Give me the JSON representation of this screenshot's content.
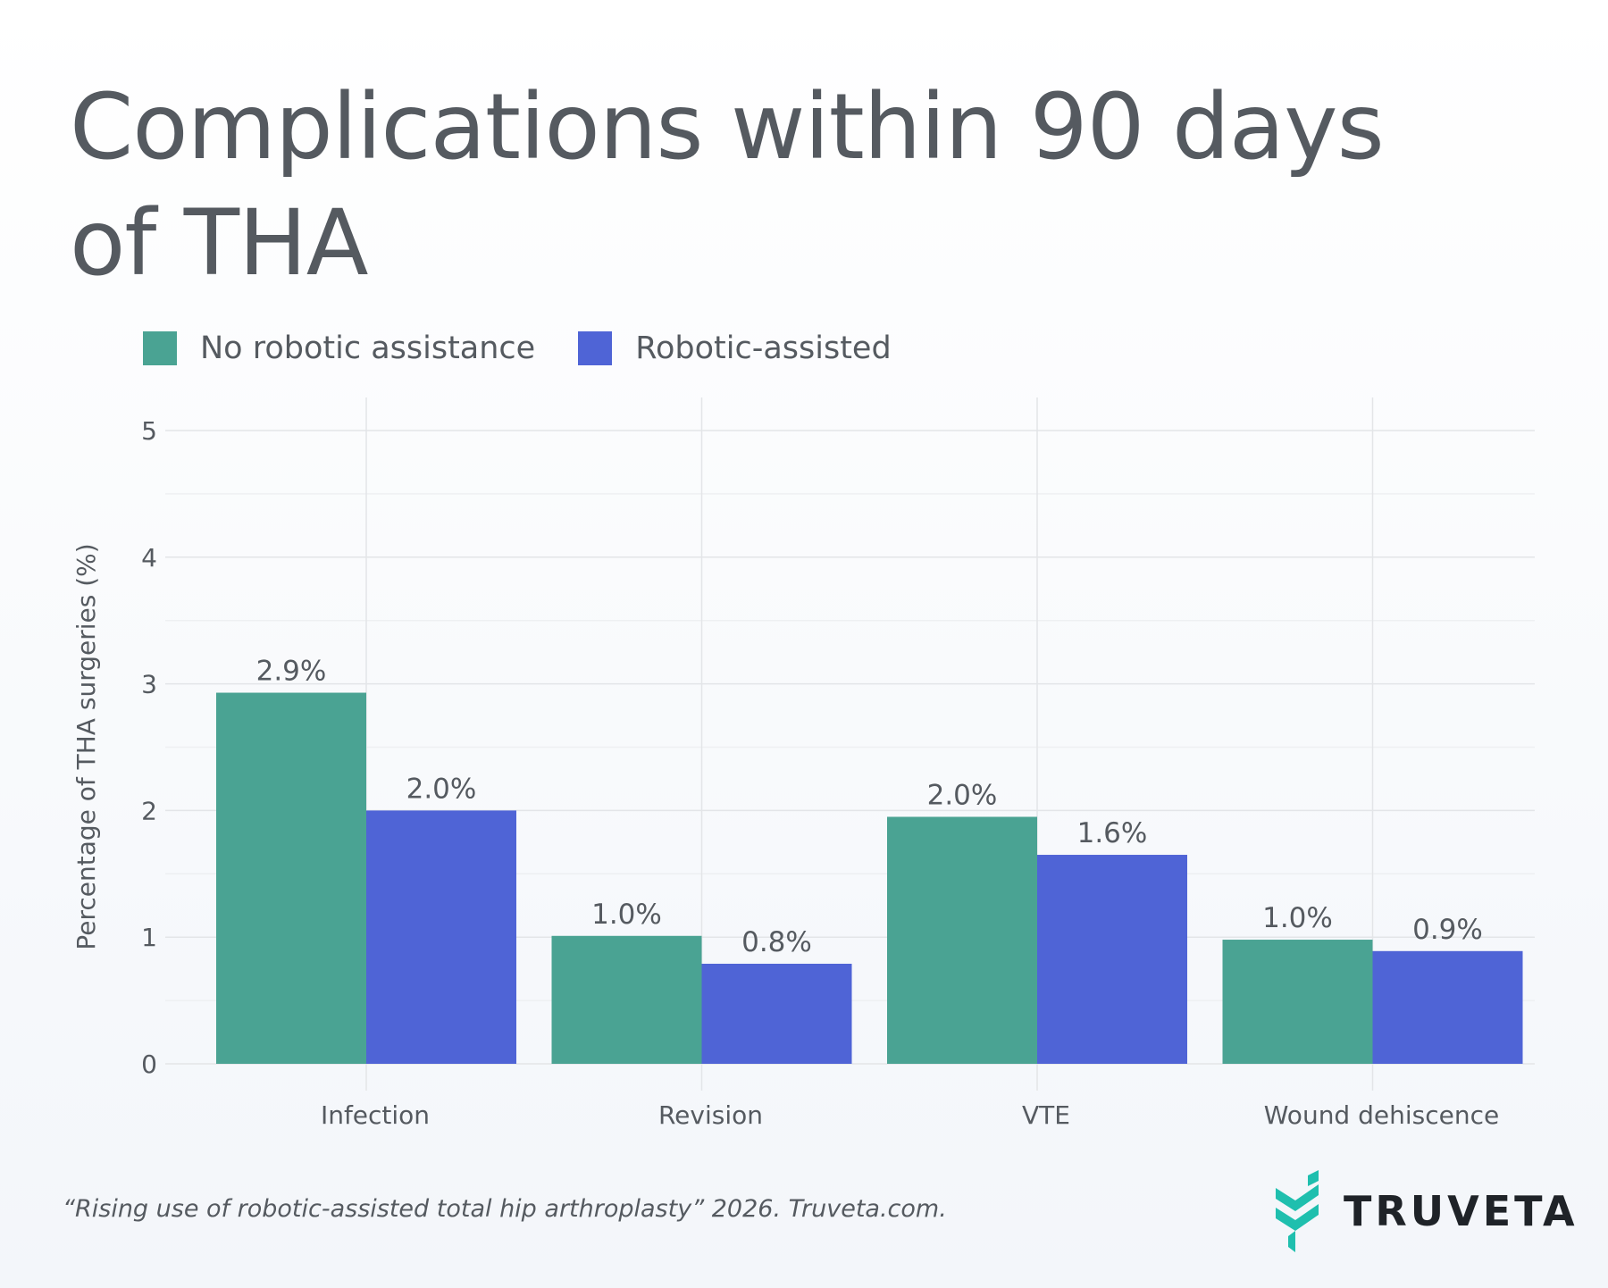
{
  "title": "Complications within 90 days of THA",
  "legend": [
    {
      "label": "No robotic assistance",
      "color": "#4aa393"
    },
    {
      "label": "Robotic-assisted",
      "color": "#4f64d6"
    }
  ],
  "chart_data": {
    "type": "bar",
    "categories": [
      "Infection",
      "Revision",
      "VTE",
      "Wound dehiscence"
    ],
    "series": [
      {
        "name": "No robotic assistance",
        "values": [
          2.93,
          1.01,
          1.95,
          0.98
        ],
        "labels": [
          "2.9%",
          "1.0%",
          "2.0%",
          "1.0%"
        ],
        "color": "#4aa393"
      },
      {
        "name": "Robotic-assisted",
        "values": [
          2.0,
          0.79,
          1.65,
          0.89
        ],
        "labels": [
          "2.0%",
          "0.8%",
          "1.6%",
          "0.9%"
        ],
        "color": "#4f64d6"
      }
    ],
    "ylabel": "Percentage of THA surgeries (%)",
    "xlabel": "",
    "ylim": [
      0,
      5
    ],
    "yticks": [
      "0",
      "1",
      "2",
      "3",
      "4",
      "5"
    ],
    "grid": true,
    "legend_position": "top-left"
  },
  "footer": {
    "citation": "“Rising use of robotic-assisted total hip arthroplasty” 2026. Truveta.com."
  },
  "logo": {
    "text": "TRUVETA",
    "icon": "truveta-chevrons-icon",
    "color": "#1fbfae"
  }
}
